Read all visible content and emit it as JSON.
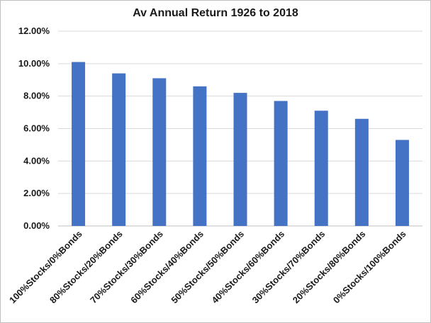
{
  "chart_data": {
    "type": "bar",
    "title": "Av Annual Return 1926 to 2018",
    "xlabel": "",
    "ylabel": "",
    "categories": [
      "100%Stocks/0%Bonds",
      "80%Stocks/20%Bonds",
      "70%Stocks/30%Bonds",
      "60%Stocks/40%Bonds",
      "50%Stocks/50%Bonds",
      "40%Stocks/60%Bonds",
      "30%Stocks/70%Bonds",
      "20%Stocks/80%Bonds",
      "0%Stocks/100%Bonds"
    ],
    "values": [
      10.1,
      9.4,
      9.1,
      8.6,
      8.2,
      7.7,
      7.1,
      6.6,
      5.3
    ],
    "ylim": [
      0,
      12
    ],
    "yticks": [
      "0.00%",
      "2.00%",
      "4.00%",
      "6.00%",
      "8.00%",
      "10.00%",
      "12.00%"
    ],
    "ytick_values": [
      0,
      2,
      4,
      6,
      8,
      10,
      12
    ],
    "grid": true,
    "legend": "none",
    "colors": {
      "bar": "#4472c4",
      "grid": "#d9d9d9",
      "axis": "#bfbfbf"
    }
  }
}
